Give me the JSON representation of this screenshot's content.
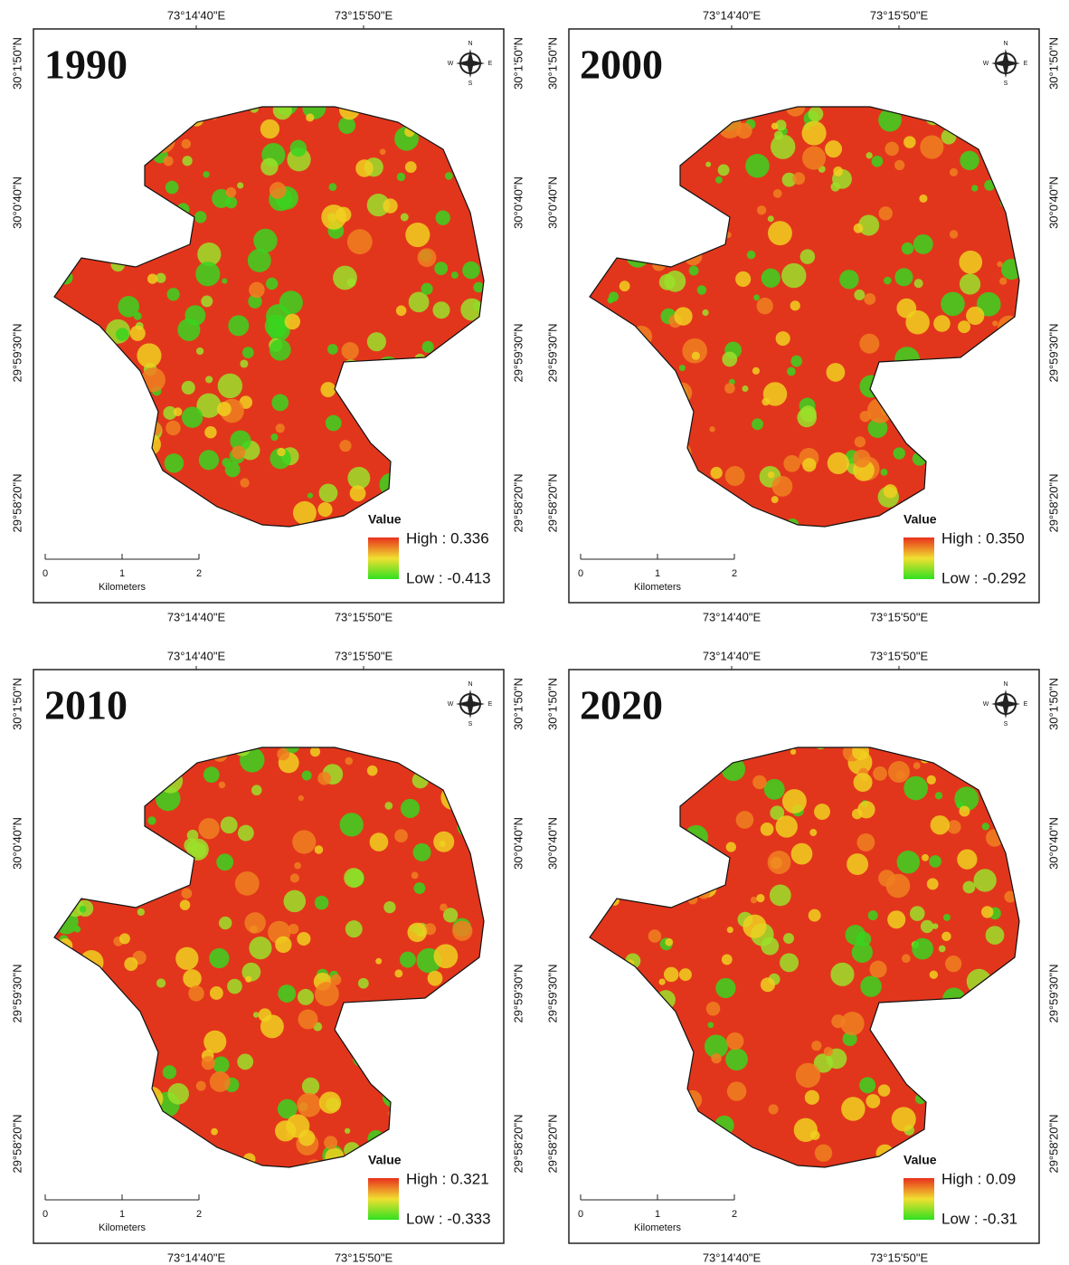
{
  "x_labels": [
    "73°14'40\"E",
    "73°15'50\"E"
  ],
  "y_labels": [
    "30°1'50\"N",
    "30°0'40\"N",
    "29°59'30\"N",
    "29°58'20\"N"
  ],
  "compass": {
    "n": "N",
    "s": "S",
    "e": "E",
    "w": "W"
  },
  "scale_bar": {
    "ticks": [
      "0",
      "1",
      "2"
    ],
    "unit": "Kilometers"
  },
  "legend_title": "Value",
  "panels": [
    {
      "year": "1990",
      "high": "High : 0.336",
      "low": "Low : -0.413"
    },
    {
      "year": "2000",
      "high": "High : 0.350",
      "low": "Low : -0.292"
    },
    {
      "year": "2010",
      "high": "High : 0.321",
      "low": "Low : -0.333"
    },
    {
      "year": "2020",
      "high": "High : 0.09",
      "low": "Low : -0.31"
    }
  ]
}
